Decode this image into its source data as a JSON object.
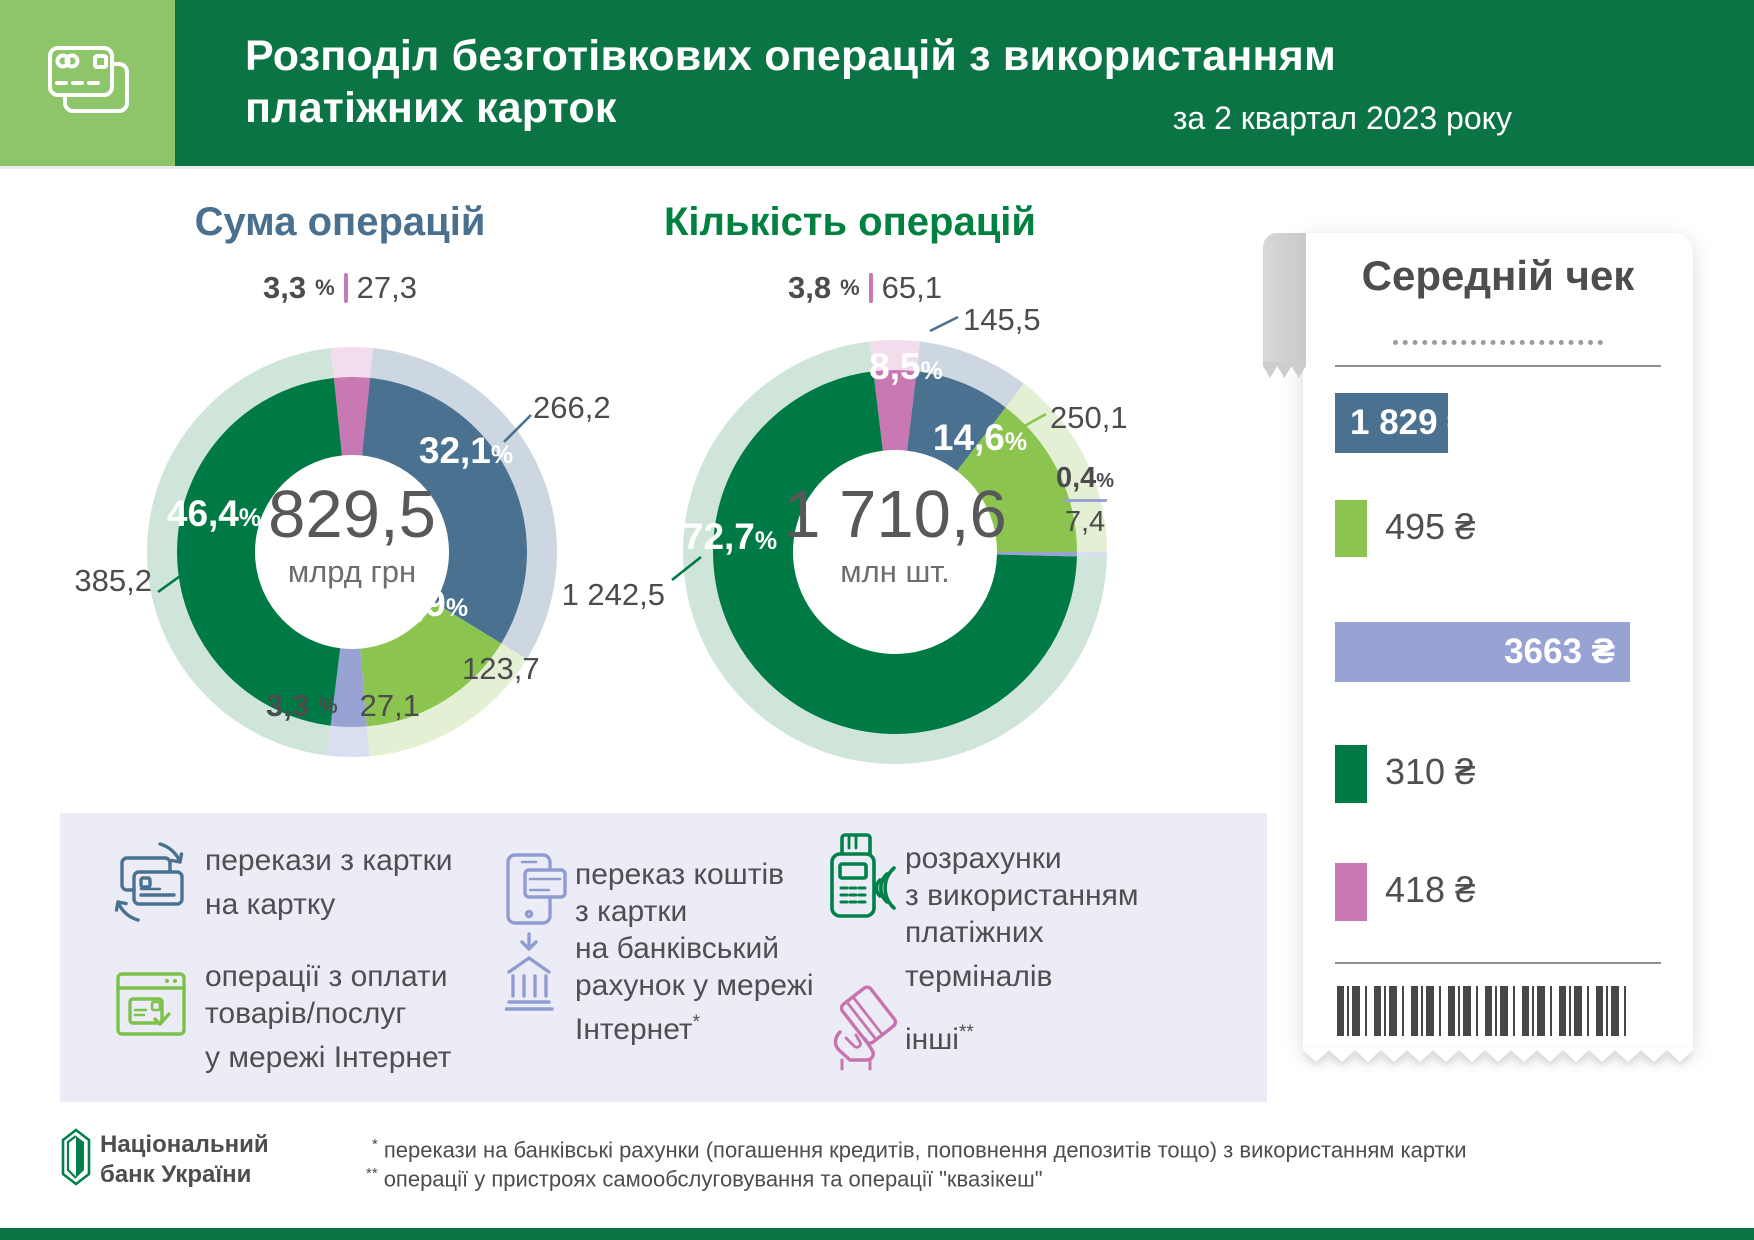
{
  "colors": {
    "header_green": "#0b7444",
    "accent_green": "#8ec46a",
    "dark_green": "#007a45",
    "light_green": "#8cc450",
    "blue_grey": "#4a7190",
    "lavender": "#98a3d4",
    "pink": "#c878b2",
    "pale_dark_green": "#cfe5da",
    "pale_light_green": "#e4f0d3",
    "pale_blue_grey": "#ccd7e1",
    "pale_lavender": "#dadef1",
    "pale_pink": "#f3dcec"
  },
  "header": {
    "title_line1": "Розподіл безготівкових операцій з використанням",
    "title_line2": "платіжних карток",
    "subtitle": "за 2 квартал 2023 року"
  },
  "chart_data": [
    {
      "type": "pie",
      "title": "Сума операцій",
      "title_color": "#4a7090",
      "center_value": "829,5",
      "center_unit": "млрд грн",
      "legend_position": "bottom panel (shared icons legend)",
      "segments": [
        {
          "name": "інші",
          "pct": 3.3,
          "pct_label": "3,3",
          "value": "27,3",
          "color": "#c878b2",
          "pale": "#f3dcec"
        },
        {
          "name": "перекази з картки на картку",
          "pct": 32.1,
          "pct_label": "32,1",
          "value": "266,2",
          "color": "#4a7190",
          "pale": "#ccd7e1"
        },
        {
          "name": "операції з оплати товарів/послуг у мережі Інтернет",
          "pct": 14.9,
          "pct_label": "14,9",
          "value": "123,7",
          "color": "#8cc450",
          "pale": "#e4f0d3"
        },
        {
          "name": "переказ коштів з картки на банківський рахунок у мережі Інтернет",
          "pct": 3.3,
          "pct_label": "3,3",
          "value": "27,1",
          "color": "#98a3d4",
          "pale": "#dadef1"
        },
        {
          "name": "розрахунки з використанням платіжних терміналів",
          "pct": 46.4,
          "pct_label": "46,4",
          "value": "385,2",
          "color": "#007a45",
          "pale": "#cfe5da"
        }
      ]
    },
    {
      "type": "pie",
      "title": "Кількість операцій",
      "title_color": "#00813f",
      "center_value": "1 710,6",
      "center_unit": "млн шт.",
      "legend_position": "bottom panel (shared icons legend)",
      "segments": [
        {
          "name": "інші",
          "pct": 3.8,
          "pct_label": "3,8",
          "value": "65,1",
          "color": "#c878b2",
          "pale": "#f3dcec"
        },
        {
          "name": "перекази з картки на картку",
          "pct": 8.5,
          "pct_label": "8,5",
          "value": "145,5",
          "color": "#4a7190",
          "pale": "#ccd7e1"
        },
        {
          "name": "операції з оплати товарів/послуг у мережі Інтернет",
          "pct": 14.6,
          "pct_label": "14,6",
          "value": "250,1",
          "color": "#8cc450",
          "pale": "#e4f0d3"
        },
        {
          "name": "переказ коштів з картки на банківський рахунок у мережі Інтернет",
          "pct": 0.4,
          "pct_label": "0,4",
          "value": "7,4",
          "color": "#98a3d4",
          "pale": "#dadef1"
        },
        {
          "name": "розрахунки з використанням платіжних терміналів",
          "pct": 72.7,
          "pct_label": "72,7",
          "value": "1 242,5",
          "color": "#007a45",
          "pale": "#cfe5da"
        }
      ]
    }
  ],
  "receipt": {
    "title": "Середній чек",
    "rows": [
      {
        "label": "1 829 ₴",
        "category": "перекази з картки на картку",
        "style": "bar",
        "color": "#4a7190"
      },
      {
        "label": "495 ₴",
        "category": "операції з оплати товарів/послуг у мережі Інтернет",
        "style": "swatch",
        "color": "#8cc450"
      },
      {
        "label": "3663 ₴",
        "category": "переказ коштів з картки на банківський рахунок у мережі Інтернет",
        "style": "bar-wide",
        "color": "#98a3d4"
      },
      {
        "label": "310 ₴",
        "category": "розрахунки з використанням платіжних терміналів",
        "style": "swatch",
        "color": "#007a45"
      },
      {
        "label": "418 ₴",
        "category": "інші",
        "style": "swatch",
        "color": "#c878b2"
      }
    ]
  },
  "legend": {
    "items": [
      {
        "icon": "cards-transfer-icon",
        "color": "#4a7190",
        "text": "перекази з картки\nна картку",
        "suffix": ""
      },
      {
        "icon": "online-payment-icon",
        "color": "#7cc24a",
        "text": "операції з оплати\nтоварів/послуг\nу мережі Інтернет",
        "suffix": ""
      },
      {
        "icon": "phone-to-bank-icon",
        "color": "#8f9cd1",
        "text": "переказ коштів\nз картки\nна банківський\nрахунок у мережі\nІнтернет",
        "suffix": "*"
      },
      {
        "icon": "pos-terminal-icon",
        "color": "#00814a",
        "text": "розрахунки\nз використанням\nплатіжних\nтерміналів",
        "suffix": ""
      },
      {
        "icon": "card-in-hand-icon",
        "color": "#c873ae",
        "text": "інші",
        "suffix": "**"
      }
    ]
  },
  "footer": {
    "bank_name": "Національний\nбанк України",
    "footnote1_marker": "*",
    "footnote1": "перекази на банківські рахунки (погашення кредитів, поповнення депозитів тощо) з використанням картки",
    "footnote2_marker": "**",
    "footnote2": "операції у пристроях самообслуговування та операції \"квазікеш\""
  }
}
